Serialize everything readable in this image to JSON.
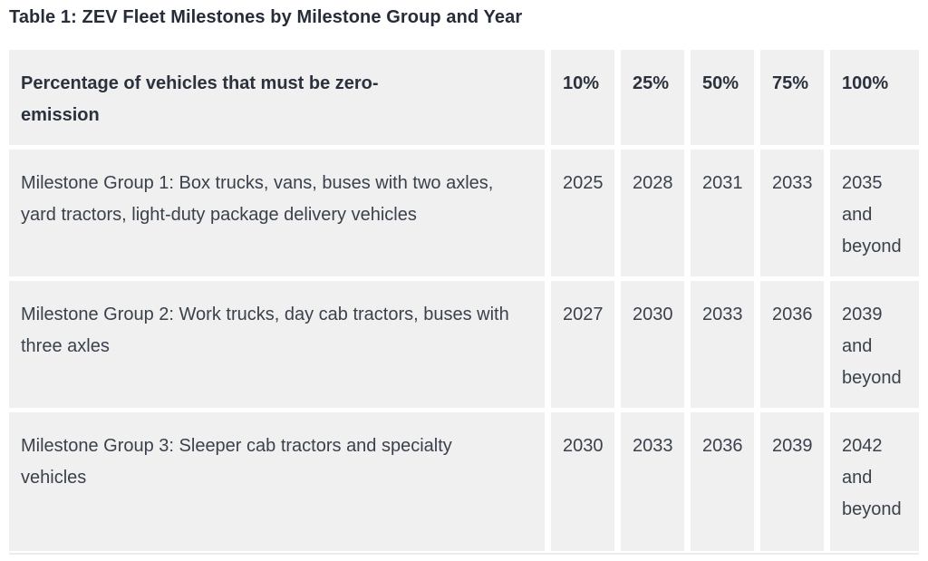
{
  "title": "Table 1: ZEV Fleet Milestones by Milestone Group and Year",
  "table": {
    "header": {
      "label": "Percentage of vehicles that must be zero-emission",
      "columns": [
        "10%",
        "25%",
        "50%",
        "75%",
        "100%"
      ]
    },
    "rows": [
      {
        "label": "Milestone Group 1: Box trucks, vans, buses with two axles, yard tractors, light-duty package delivery vehicles",
        "values": [
          "2025",
          "2028",
          "2031",
          "2033",
          "2035 and beyond"
        ]
      },
      {
        "label": "Milestone Group 2: Work trucks, day cab tractors, buses with three axles",
        "values": [
          "2027",
          "2030",
          "2033",
          "2036",
          "2039 and beyond"
        ]
      },
      {
        "label": "Milestone Group 3: Sleeper cab tractors and specialty vehicles",
        "values": [
          "2030",
          "2033",
          "2036",
          "2039",
          "2042 and beyond"
        ]
      }
    ]
  },
  "colors": {
    "cell_background": "#f0f0f0",
    "gutter": "#ffffff",
    "body_text": "#3a414c",
    "heading_text": "#262d38"
  }
}
